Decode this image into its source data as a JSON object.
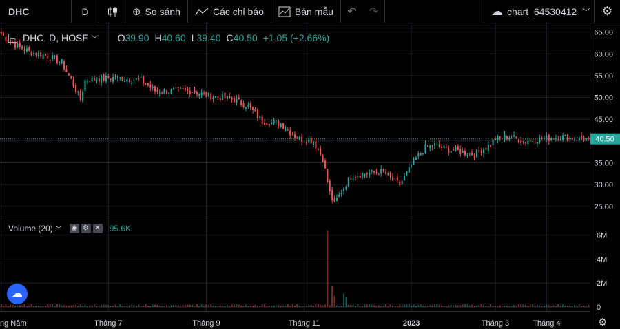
{
  "toolbar": {
    "symbol": "DHC",
    "interval": "D",
    "compare_label": "So sánh",
    "indicators_label": "Các chỉ báo",
    "templates_label": "Bản mẫu",
    "chart_name": "chart_64530412"
  },
  "legend": {
    "title": "DHC, D, HOSE",
    "open_key": "O",
    "open": "39.90",
    "high_key": "H",
    "high": "40.60",
    "low_key": "L",
    "low": "39.40",
    "close_key": "C",
    "close": "40.50",
    "change": "+1.05 (+2.66%)"
  },
  "volume_legend": {
    "title": "Volume (20)",
    "value": "95.6K"
  },
  "last_price_label": "40.50",
  "colors": {
    "up": "#26a69a",
    "down": "#ef5350",
    "grid": "#1e222d",
    "text": "#d1d4dc",
    "pricebox": "#26a69a"
  },
  "chart_data": {
    "type": "candlestick",
    "symbol": "DHC",
    "interval": "D",
    "exchange": "HOSE",
    "price_axis": {
      "ticks": [
        25,
        30,
        35,
        40,
        45,
        50,
        55,
        60,
        65
      ],
      "tick_labels": [
        "25.00",
        "30.00",
        "35.00",
        "40.00",
        "45.00",
        "50.00",
        "55.00",
        "60.00",
        "65.00"
      ],
      "range": [
        22.6,
        67.0
      ]
    },
    "volume_axis": {
      "tick_labels": [
        "0",
        "2M",
        "4M",
        "6M"
      ],
      "ticks": [
        0,
        2000000,
        4000000,
        6000000
      ],
      "range": [
        0,
        6900000
      ]
    },
    "time_axis_labels": [
      {
        "label": "ng Năm",
        "index": 0
      },
      {
        "label": "Tháng 7",
        "index": 46
      },
      {
        "label": "Tháng 9",
        "index": 88
      },
      {
        "label": "Tháng 11",
        "index": 130
      },
      {
        "label": "2023",
        "index": 176
      },
      {
        "label": "Tháng 3",
        "index": 212
      },
      {
        "label": "Tháng 4",
        "index": 234
      }
    ],
    "last_close": 40.5,
    "anchors": [
      [
        0,
        64.5
      ],
      [
        6,
        62.0
      ],
      [
        12,
        60.5
      ],
      [
        20,
        59.5
      ],
      [
        26,
        58.0
      ],
      [
        30,
        54.0
      ],
      [
        34,
        49.5
      ],
      [
        36,
        54.0
      ],
      [
        48,
        54.5
      ],
      [
        60,
        54.0
      ],
      [
        66,
        51.5
      ],
      [
        82,
        51.5
      ],
      [
        88,
        50.5
      ],
      [
        100,
        49.5
      ],
      [
        106,
        48.0
      ],
      [
        112,
        44.5
      ],
      [
        120,
        44.0
      ],
      [
        124,
        42.0
      ],
      [
        128,
        40.5
      ],
      [
        134,
        40.0
      ],
      [
        138,
        36.0
      ],
      [
        141,
        28.0
      ],
      [
        143,
        25.5
      ],
      [
        146,
        28.5
      ],
      [
        150,
        32.0
      ],
      [
        156,
        32.5
      ],
      [
        164,
        33.0
      ],
      [
        168,
        31.0
      ],
      [
        171,
        30.0
      ],
      [
        174,
        32.5
      ],
      [
        178,
        36.0
      ],
      [
        182,
        38.5
      ],
      [
        186,
        39.0
      ],
      [
        192,
        38.0
      ],
      [
        198,
        37.5
      ],
      [
        203,
        37.0
      ],
      [
        208,
        38.5
      ],
      [
        212,
        40.5
      ],
      [
        218,
        41.0
      ],
      [
        224,
        40.0
      ],
      [
        232,
        40.5
      ],
      [
        240,
        41.0
      ],
      [
        248,
        40.5
      ],
      [
        252,
        40.5
      ]
    ],
    "volume_spikes": [
      {
        "index": 140,
        "volume": 6400000
      },
      {
        "index": 142,
        "volume": 1750000
      },
      {
        "index": 143,
        "volume": 950000
      },
      {
        "index": 147,
        "volume": 1100000
      },
      {
        "index": 148,
        "volume": 800000
      }
    ]
  }
}
